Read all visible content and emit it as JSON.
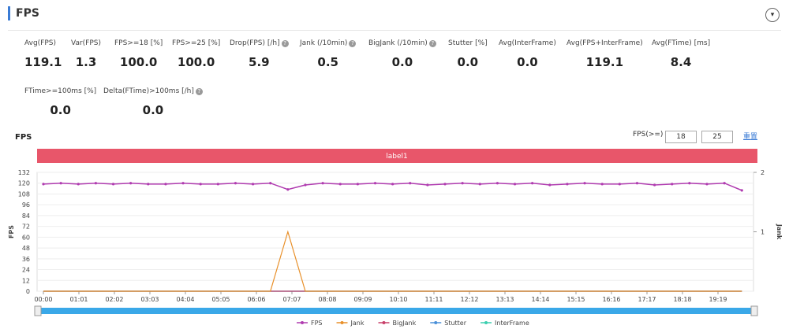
{
  "header": {
    "title": "FPS"
  },
  "stats": [
    {
      "label": "Avg(FPS)",
      "value": "119.1",
      "help": false
    },
    {
      "label": "Var(FPS)",
      "value": "1.3",
      "help": false
    },
    {
      "label": "FPS>=18 [%]",
      "value": "100.0",
      "help": false
    },
    {
      "label": "FPS>=25 [%]",
      "value": "100.0",
      "help": false
    },
    {
      "label": "Drop(FPS) [/h]",
      "value": "5.9",
      "help": true
    },
    {
      "label": "Jank (/10min)",
      "value": "0.5",
      "help": true
    },
    {
      "label": "BigJank (/10min)",
      "value": "0.0",
      "help": true
    },
    {
      "label": "Stutter [%]",
      "value": "0.0",
      "help": false
    },
    {
      "label": "Avg(InterFrame)",
      "value": "0.0",
      "help": false
    },
    {
      "label": "Avg(FPS+InterFrame)",
      "value": "119.1",
      "help": false
    },
    {
      "label": "Avg(FTime) [ms]",
      "value": "8.4",
      "help": false
    },
    {
      "label": "FTime>=100ms [%]",
      "value": "0.0",
      "help": false
    },
    {
      "label": "Delta(FTime)>100ms [/h]",
      "value": "0.0",
      "help": true
    }
  ],
  "controls": {
    "label": "FPS(>=)",
    "inputs": [
      "18",
      "25"
    ],
    "reset": "重置"
  },
  "chart_data": {
    "type": "line",
    "title": "FPS",
    "band_label": "label1",
    "ylabel": "FPS",
    "y2label": "Jank",
    "x": [
      0,
      30,
      60,
      90,
      120,
      150,
      180,
      210,
      240,
      270,
      300,
      330,
      360,
      390,
      420,
      450,
      480,
      510,
      540,
      570,
      600,
      630,
      660,
      690,
      720,
      750,
      780,
      810,
      840,
      870,
      900,
      930,
      960,
      990,
      1020,
      1050,
      1080,
      1110,
      1140,
      1170,
      1200
    ],
    "xlim": [
      0,
      1220
    ],
    "xticks": [
      {
        "value": 0,
        "label": "00:00"
      },
      {
        "value": 61,
        "label": "01:01"
      },
      {
        "value": 122,
        "label": "02:02"
      },
      {
        "value": 183,
        "label": "03:03"
      },
      {
        "value": 244,
        "label": "04:04"
      },
      {
        "value": 305,
        "label": "05:05"
      },
      {
        "value": 366,
        "label": "06:06"
      },
      {
        "value": 427,
        "label": "07:07"
      },
      {
        "value": 488,
        "label": "08:08"
      },
      {
        "value": 549,
        "label": "09:09"
      },
      {
        "value": 610,
        "label": "10:10"
      },
      {
        "value": 671,
        "label": "11:11"
      },
      {
        "value": 732,
        "label": "12:12"
      },
      {
        "value": 793,
        "label": "13:13"
      },
      {
        "value": 854,
        "label": "14:14"
      },
      {
        "value": 915,
        "label": "15:15"
      },
      {
        "value": 976,
        "label": "16:16"
      },
      {
        "value": 1037,
        "label": "17:17"
      },
      {
        "value": 1098,
        "label": "18:18"
      },
      {
        "value": 1159,
        "label": "19:19"
      }
    ],
    "ylim": [
      0,
      132
    ],
    "yticks": [
      0,
      12,
      24,
      36,
      48,
      60,
      72,
      84,
      96,
      108,
      120,
      132
    ],
    "y2lim": [
      0,
      2
    ],
    "y2ticks": [
      1,
      2
    ],
    "series": [
      {
        "name": "FPS",
        "color": "#b03cb0",
        "values": [
          119,
          120,
          119,
          120,
          119,
          120,
          119,
          119,
          120,
          119,
          119,
          120,
          119,
          120,
          113,
          118,
          120,
          119,
          119,
          120,
          119,
          120,
          118,
          119,
          120,
          119,
          120,
          119,
          120,
          118,
          119,
          120,
          119,
          119,
          120,
          118,
          119,
          120,
          119,
          120,
          112
        ]
      },
      {
        "name": "Jank",
        "color": "#e8902a",
        "axis": "y2",
        "values": [
          0,
          0,
          0,
          0,
          0,
          0,
          0,
          0,
          0,
          0,
          0,
          0,
          0,
          0,
          1,
          0,
          0,
          0,
          0,
          0,
          0,
          0,
          0,
          0,
          0,
          0,
          0,
          0,
          0,
          0,
          0,
          0,
          0,
          0,
          0,
          0,
          0,
          0,
          0,
          0,
          0
        ]
      },
      {
        "name": "BigJank",
        "color": "#c8406a",
        "axis": "y2",
        "values": [
          0,
          0,
          0,
          0,
          0,
          0,
          0,
          0,
          0,
          0,
          0,
          0,
          0,
          0,
          0,
          0,
          0,
          0,
          0,
          0,
          0,
          0,
          0,
          0,
          0,
          0,
          0,
          0,
          0,
          0,
          0,
          0,
          0,
          0,
          0,
          0,
          0,
          0,
          0,
          0,
          0
        ]
      },
      {
        "name": "Stutter",
        "color": "#4a90d9",
        "axis": "y2",
        "values": [
          0,
          0,
          0,
          0,
          0,
          0,
          0,
          0,
          0,
          0,
          0,
          0,
          0,
          0,
          0,
          0,
          0,
          0,
          0,
          0,
          0,
          0,
          0,
          0,
          0,
          0,
          0,
          0,
          0,
          0,
          0,
          0,
          0,
          0,
          0,
          0,
          0,
          0,
          0,
          0,
          0
        ]
      },
      {
        "name": "InterFrame",
        "color": "#3ccfb0",
        "axis": "y2",
        "values": [
          0,
          0,
          0,
          0,
          0,
          0,
          0,
          0,
          0,
          0,
          0,
          0,
          0,
          0,
          0,
          0,
          0,
          0,
          0,
          0,
          0,
          0,
          0,
          0,
          0,
          0,
          0,
          0,
          0,
          0,
          0,
          0,
          0,
          0,
          0,
          0,
          0,
          0,
          0,
          0,
          0
        ]
      }
    ]
  }
}
